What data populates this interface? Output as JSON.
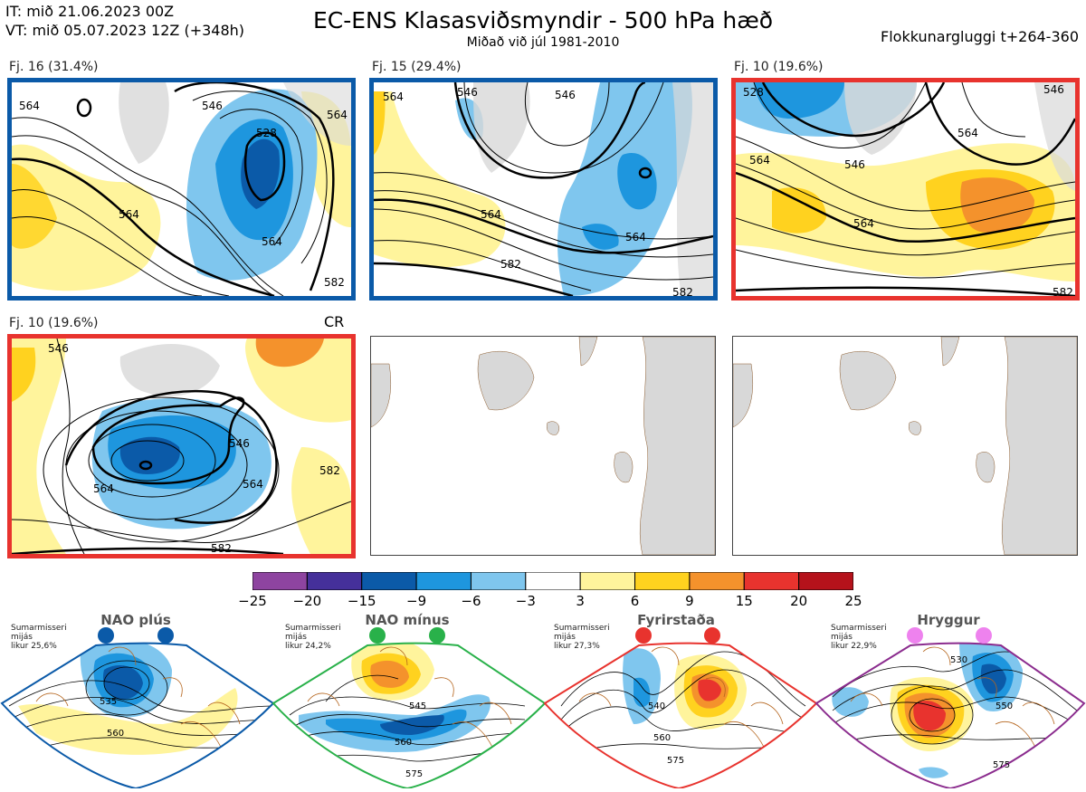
{
  "header": {
    "it": "IT: mið 21.06.2023 00Z",
    "vt": "VT: mið 05.07.2023 12Z  (+348h)",
    "title": "EC-ENS Klasasviðsmyndir - 500 hPa hæð",
    "subtitle": "Miðað við júl 1981-2010",
    "window": "Flokkunargluggi t+264-360"
  },
  "panels": [
    {
      "label": "Fj. 16 (31.4%)",
      "border_color": "#0b5aa8"
    },
    {
      "label": "Fj. 15 (29.4%)",
      "border_color": "#0b5aa8"
    },
    {
      "label": "Fj. 10 (19.6%)",
      "border_color": "#e8332e"
    },
    {
      "label": "Fj. 10 (19.6%)",
      "border_color": "#e8332e",
      "tag": "CR"
    }
  ],
  "contour_labels": {
    "p1": [
      "564",
      "564",
      "546",
      "528",
      "564",
      "564",
      "582"
    ],
    "p2": [
      "564",
      "546",
      "546",
      "564",
      "564",
      "582",
      "582"
    ],
    "p3": [
      "528",
      "546",
      "564",
      "564",
      "546",
      "564",
      "582"
    ],
    "p4": [
      "546",
      "564",
      "546",
      "564",
      "582",
      "582"
    ]
  },
  "colorbar": {
    "ticks": [
      "-25",
      "-20",
      "-15",
      "-9",
      "-6",
      "-3",
      "3",
      "6",
      "9",
      "15",
      "20",
      "25"
    ],
    "colors": [
      "#8e44a0",
      "#45309a",
      "#0b5aa8",
      "#1e96de",
      "#7fc6ee",
      "#ffffff",
      "#fff49c",
      "#ffd21f",
      "#f4922c",
      "#e8332e",
      "#b5121b"
    ]
  },
  "regimes": [
    {
      "title": "NAO plús",
      "stats": [
        "Sumarmisseri",
        "mijás",
        "likur 25,6%"
      ],
      "dot_color": "#0b5aa8",
      "border_color": "#0b5aa8",
      "labels": [
        "535",
        "560"
      ]
    },
    {
      "title": "NAO mínus",
      "stats": [
        "Sumarmisseri",
        "mijás",
        "likur 24,2%"
      ],
      "dot_color": "#29b14a",
      "border_color": "#29b14a",
      "labels": [
        "545",
        "560",
        "575"
      ]
    },
    {
      "title": "Fyrirstaða",
      "stats": [
        "Sumarmisseri",
        "mijás",
        "likur 27,3%"
      ],
      "dot_color": "#e8332e",
      "border_color": "#e8332e",
      "labels": [
        "540",
        "560",
        "575"
      ]
    },
    {
      "title": "Hryggur",
      "stats": [
        "Sumarmisseri",
        "mijás",
        "likur 22,9%"
      ],
      "dot_color": "#ee82ee",
      "border_color": "#8b2c8e",
      "labels": [
        "530",
        "550",
        "575"
      ]
    }
  ]
}
